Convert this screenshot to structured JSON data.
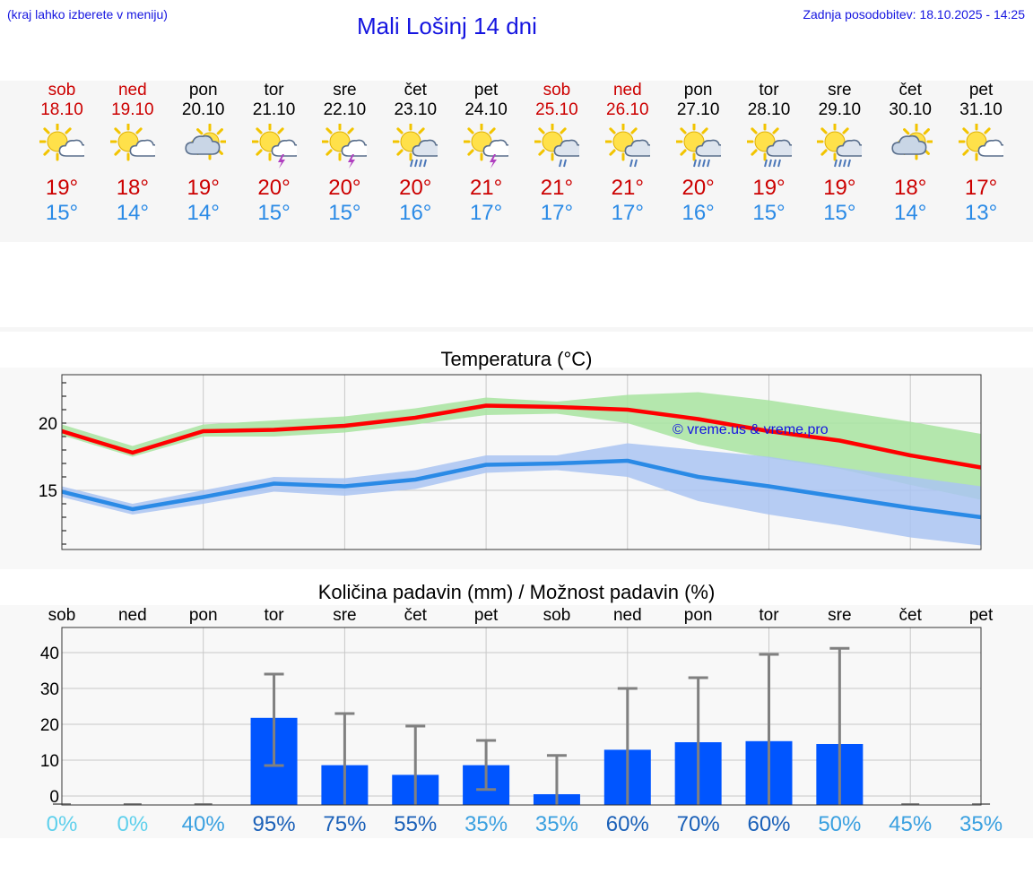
{
  "header": {
    "note": "(kraj lahko izberete v meniju)",
    "title": "Mali Lošinj 14 dni",
    "updated": "Zadnja posodobitev: 18.10.2025 - 14:25"
  },
  "colors": {
    "link": "#1515e0",
    "weekend": "#cc0000",
    "weekday": "#000000",
    "tmax": "#cc0000",
    "tmin": "#2a8ae6",
    "bar": "#0055ff",
    "whisker": "#808080"
  },
  "days": [
    {
      "name": "sob",
      "date": "18.10",
      "weekend": true,
      "icon": "sun-cloud-icon",
      "tmax": "19°",
      "tmin": "15°"
    },
    {
      "name": "ned",
      "date": "19.10",
      "weekend": true,
      "icon": "sun-cloud-icon",
      "tmax": "18°",
      "tmin": "14°"
    },
    {
      "name": "pon",
      "date": "20.10",
      "weekend": false,
      "icon": "cloud-sun-icon",
      "tmax": "19°",
      "tmin": "14°"
    },
    {
      "name": "tor",
      "date": "21.10",
      "weekend": false,
      "icon": "sun-cloud-thunder-icon",
      "tmax": "20°",
      "tmin": "15°"
    },
    {
      "name": "sre",
      "date": "22.10",
      "weekend": false,
      "icon": "sun-cloud-thunder-icon",
      "tmax": "20°",
      "tmin": "15°"
    },
    {
      "name": "čet",
      "date": "23.10",
      "weekend": false,
      "icon": "sun-cloud-rain-icon",
      "tmax": "20°",
      "tmin": "16°"
    },
    {
      "name": "pet",
      "date": "24.10",
      "weekend": false,
      "icon": "sun-cloud-thunder-icon",
      "tmax": "21°",
      "tmin": "17°"
    },
    {
      "name": "sob",
      "date": "25.10",
      "weekend": true,
      "icon": "sun-cloud-light-rain-icon",
      "tmax": "21°",
      "tmin": "17°"
    },
    {
      "name": "ned",
      "date": "26.10",
      "weekend": true,
      "icon": "sun-cloud-light-rain-icon",
      "tmax": "21°",
      "tmin": "17°"
    },
    {
      "name": "pon",
      "date": "27.10",
      "weekend": false,
      "icon": "sun-cloud-rain-icon",
      "tmax": "20°",
      "tmin": "16°"
    },
    {
      "name": "tor",
      "date": "28.10",
      "weekend": false,
      "icon": "sun-cloud-rain-icon",
      "tmax": "19°",
      "tmin": "15°"
    },
    {
      "name": "sre",
      "date": "29.10",
      "weekend": false,
      "icon": "sun-cloud-rain-icon",
      "tmax": "19°",
      "tmin": "15°"
    },
    {
      "name": "čet",
      "date": "30.10",
      "weekend": false,
      "icon": "cloud-sun-icon",
      "tmax": "18°",
      "tmin": "14°"
    },
    {
      "name": "pet",
      "date": "31.10",
      "weekend": false,
      "icon": "sun-cloud-icon",
      "tmax": "17°",
      "tmin": "13°"
    }
  ],
  "chart_data": [
    {
      "type": "line",
      "title": "Temperatura (°C)",
      "watermark": "© vreme.us & vreme.pro",
      "x": [
        0,
        1,
        2,
        3,
        4,
        5,
        6,
        7,
        8,
        9,
        10,
        11,
        12,
        13
      ],
      "ylim": [
        10.6,
        23.6
      ],
      "yticks": [
        15,
        20
      ],
      "series": [
        {
          "name": "max",
          "color": "#ff0000",
          "values": [
            19.4,
            17.8,
            19.4,
            19.5,
            19.8,
            20.4,
            21.3,
            21.2,
            21.0,
            20.3,
            19.4,
            18.7,
            17.6,
            16.7
          ]
        },
        {
          "name": "min",
          "color": "#2a8ae6",
          "values": [
            14.9,
            13.6,
            14.5,
            15.5,
            15.3,
            15.8,
            16.9,
            17.0,
            17.2,
            16.0,
            15.3,
            14.5,
            13.7,
            13.0
          ]
        }
      ],
      "bands": [
        {
          "name": "max-range",
          "color": "#a8e4a0",
          "upper": [
            19.9,
            18.3,
            19.9,
            20.2,
            20.5,
            21.1,
            21.9,
            21.6,
            22.1,
            22.3,
            21.7,
            20.9,
            20.1,
            19.2
          ],
          "lower": [
            19.1,
            17.5,
            19.0,
            19.0,
            19.3,
            19.9,
            20.6,
            20.7,
            20.0,
            18.4,
            17.4,
            16.6,
            15.4,
            14.3
          ]
        },
        {
          "name": "min-range",
          "color": "#aac4f2",
          "upper": [
            15.3,
            14.0,
            15.0,
            16.0,
            15.9,
            16.5,
            17.6,
            17.6,
            18.5,
            18.0,
            17.5,
            16.7,
            16.0,
            15.3
          ],
          "lower": [
            14.5,
            13.2,
            14.0,
            14.9,
            14.6,
            15.1,
            16.3,
            16.5,
            16.0,
            14.2,
            13.2,
            12.4,
            11.5,
            10.9
          ]
        }
      ]
    },
    {
      "type": "bar",
      "title": "Količina padavin (mm) / Možnost padavin (%)",
      "categories": [
        "sob",
        "ned",
        "pon",
        "tor",
        "sre",
        "čet",
        "pet",
        "sob",
        "ned",
        "pon",
        "tor",
        "sre",
        "čet",
        "pet"
      ],
      "values": [
        0,
        0,
        0,
        21.8,
        8.6,
        5.9,
        8.6,
        0.5,
        12.9,
        15.0,
        15.3,
        14.5,
        0,
        0
      ],
      "error_high": [
        0,
        0,
        0,
        34.0,
        23.0,
        19.5,
        15.5,
        11.3,
        30.0,
        33.0,
        39.5,
        41.2,
        0,
        0
      ],
      "error_low": [
        0,
        0,
        0,
        8.5,
        0,
        0,
        1.8,
        0,
        0,
        0,
        0,
        0,
        0,
        0
      ],
      "ylim": [
        -2.5,
        47
      ],
      "yticks": [
        0,
        10,
        20,
        30,
        40
      ],
      "probabilities": [
        "0%",
        "0%",
        "40%",
        "95%",
        "75%",
        "55%",
        "35%",
        "35%",
        "60%",
        "70%",
        "60%",
        "50%",
        "45%",
        "35%"
      ],
      "probability_colors": [
        "#5fd0ec",
        "#5fd0ec",
        "#3aa0e0",
        "#1a60b8",
        "#1a60b8",
        "#1a60b8",
        "#3aa0e0",
        "#3aa0e0",
        "#1a60b8",
        "#1a60b8",
        "#1a60b8",
        "#3aa0e0",
        "#3aa0e0",
        "#3aa0e0"
      ]
    }
  ]
}
